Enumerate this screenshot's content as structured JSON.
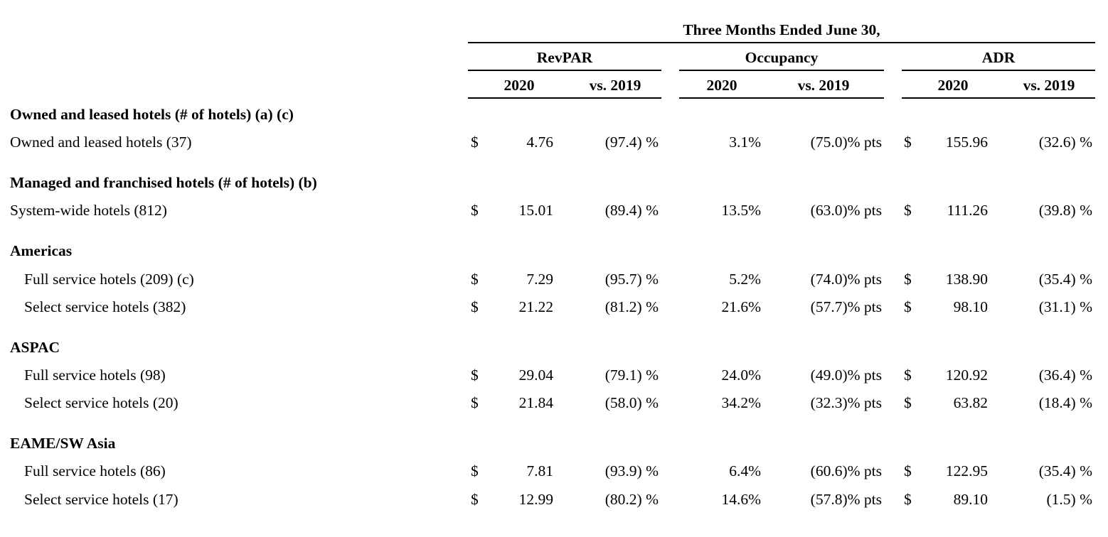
{
  "header": {
    "period": "Three Months Ended June 30,",
    "groups": [
      "RevPAR",
      "Occupancy",
      "ADR"
    ],
    "year_label": "2020",
    "change_label": "vs. 2019"
  },
  "rows": [
    {
      "type": "section",
      "label": "Owned and leased hotels (# of hotels) (a) (c)"
    },
    {
      "type": "data",
      "label": "Owned and leased hotels (37)",
      "indent": false,
      "revpar_cur": "$",
      "revpar": "4.76",
      "revpar_chg": "(97.4) %",
      "occ": "3.1%",
      "occ_chg": "(75.0)% pts",
      "adr_cur": "$",
      "adr": "155.96",
      "adr_chg": "(32.6) %"
    },
    {
      "type": "section",
      "label": "Managed and franchised hotels (# of hotels) (b)"
    },
    {
      "type": "data",
      "label": "System-wide hotels (812)",
      "indent": false,
      "revpar_cur": "$",
      "revpar": "15.01",
      "revpar_chg": "(89.4) %",
      "occ": "13.5%",
      "occ_chg": "(63.0)% pts",
      "adr_cur": "$",
      "adr": "111.26",
      "adr_chg": "(39.8) %"
    },
    {
      "type": "section",
      "label": "Americas"
    },
    {
      "type": "data",
      "label": "Full service hotels (209) (c)",
      "indent": true,
      "revpar_cur": "$",
      "revpar": "7.29",
      "revpar_chg": "(95.7) %",
      "occ": "5.2%",
      "occ_chg": "(74.0)% pts",
      "adr_cur": "$",
      "adr": "138.90",
      "adr_chg": "(35.4) %"
    },
    {
      "type": "data",
      "label": "Select service hotels (382)",
      "indent": true,
      "revpar_cur": "$",
      "revpar": "21.22",
      "revpar_chg": "(81.2) %",
      "occ": "21.6%",
      "occ_chg": "(57.7)% pts",
      "adr_cur": "$",
      "adr": "98.10",
      "adr_chg": "(31.1) %"
    },
    {
      "type": "section",
      "label": "ASPAC"
    },
    {
      "type": "data",
      "label": "Full service hotels (98)",
      "indent": true,
      "revpar_cur": "$",
      "revpar": "29.04",
      "revpar_chg": "(79.1) %",
      "occ": "24.0%",
      "occ_chg": "(49.0)% pts",
      "adr_cur": "$",
      "adr": "120.92",
      "adr_chg": "(36.4) %"
    },
    {
      "type": "data",
      "label": "Select service hotels (20)",
      "indent": true,
      "revpar_cur": "$",
      "revpar": "21.84",
      "revpar_chg": "(58.0) %",
      "occ": "34.2%",
      "occ_chg": "(32.3)% pts",
      "adr_cur": "$",
      "adr": "63.82",
      "adr_chg": "(18.4) %"
    },
    {
      "type": "section",
      "label": "EAME/SW Asia"
    },
    {
      "type": "data",
      "label": "Full service hotels (86)",
      "indent": true,
      "revpar_cur": "$",
      "revpar": "7.81",
      "revpar_chg": "(93.9) %",
      "occ": "6.4%",
      "occ_chg": "(60.6)% pts",
      "adr_cur": "$",
      "adr": "122.95",
      "adr_chg": "(35.4) %"
    },
    {
      "type": "data",
      "label": "Select service hotels (17)",
      "indent": true,
      "revpar_cur": "$",
      "revpar": "12.99",
      "revpar_chg": "(80.2) %",
      "occ": "14.6%",
      "occ_chg": "(57.8)% pts",
      "adr_cur": "$",
      "adr": "89.10",
      "adr_chg": "(1.5) %"
    }
  ]
}
